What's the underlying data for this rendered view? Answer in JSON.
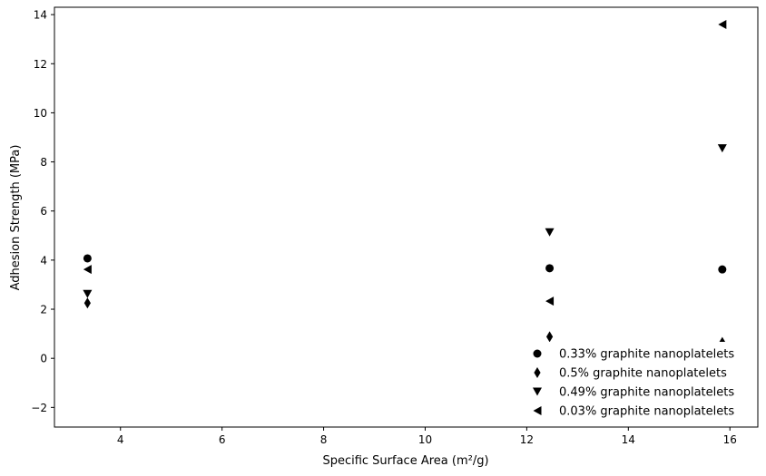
{
  "chart_data": {
    "type": "scatter",
    "title": "",
    "xlabel": "Specific Surface Area (m²/g)",
    "ylabel": "Adhesion Strength (MPa)",
    "xlim": [
      2.7,
      16.55
    ],
    "ylim": [
      -2.8,
      14.3
    ],
    "xticks": [
      4,
      6,
      8,
      10,
      12,
      14,
      16
    ],
    "yticks": [
      -2,
      0,
      2,
      4,
      6,
      8,
      10,
      12,
      14
    ],
    "grid": false,
    "legend_position": "lower-right",
    "series": [
      {
        "name": "0.33% graphite nanoplatelets",
        "marker": "circle",
        "color": "#000000",
        "x": [
          3.35,
          12.45,
          15.85
        ],
        "y": [
          4.07,
          3.67,
          3.62
        ]
      },
      {
        "name": "0.5% graphite nanoplatelets",
        "marker": "thin-diamond",
        "color": "#000000",
        "x": [
          3.35,
          12.45,
          15.85
        ],
        "y": [
          2.25,
          0.88,
          0.65
        ]
      },
      {
        "name": "0.49% graphite nanoplatelets",
        "marker": "triangle-down",
        "color": "#000000",
        "x": [
          3.35,
          12.45,
          15.85
        ],
        "y": [
          2.62,
          5.13,
          8.55
        ]
      },
      {
        "name": "0.03% graphite nanoplatelets",
        "marker": "triangle-left",
        "color": "#000000",
        "x": [
          3.35,
          12.45,
          15.85
        ],
        "y": [
          3.62,
          2.33,
          13.6
        ]
      }
    ]
  }
}
